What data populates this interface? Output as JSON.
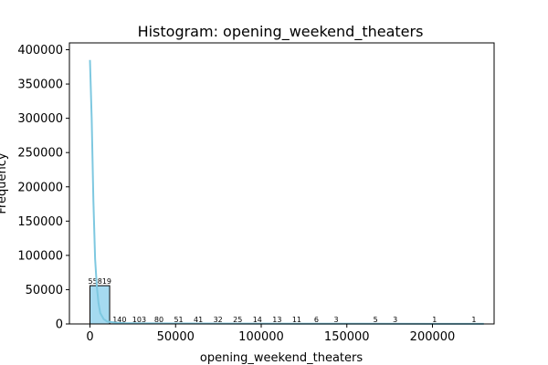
{
  "chart_data": {
    "type": "bar",
    "subtype": "histogram-with-kde",
    "title": "Histogram: opening_weekend_theaters",
    "xlabel": "opening_weekend_theaters",
    "ylabel": "Frequency",
    "xlim": [
      -12000,
      236000
    ],
    "ylim": [
      0,
      410000
    ],
    "xticks": [
      0,
      50000,
      100000,
      150000,
      200000
    ],
    "xtick_labels": [
      "0",
      "50000",
      "100000",
      "150000",
      "200000"
    ],
    "yticks": [
      0,
      50000,
      100000,
      150000,
      200000,
      250000,
      300000,
      350000,
      400000
    ],
    "ytick_labels": [
      "0",
      "50000",
      "100000",
      "150000",
      "200000",
      "250000",
      "300000",
      "350000",
      "400000"
    ],
    "grid": false,
    "bar_color": "#87ceeb",
    "bar_edge_color": "#000000",
    "kde_color": "#7ec8e0",
    "bins": [
      {
        "x0": 0,
        "x1": 11500,
        "count": 55819
      },
      {
        "x0": 11500,
        "x1": 23000,
        "count": 140
      },
      {
        "x0": 23000,
        "x1": 34500,
        "count": 103
      },
      {
        "x0": 34500,
        "x1": 46000,
        "count": 80
      },
      {
        "x0": 46000,
        "x1": 57500,
        "count": 51
      },
      {
        "x0": 57500,
        "x1": 69000,
        "count": 41
      },
      {
        "x0": 69000,
        "x1": 80500,
        "count": 32
      },
      {
        "x0": 80500,
        "x1": 92000,
        "count": 25
      },
      {
        "x0": 92000,
        "x1": 103500,
        "count": 14
      },
      {
        "x0": 103500,
        "x1": 115000,
        "count": 13
      },
      {
        "x0": 115000,
        "x1": 126500,
        "count": 11
      },
      {
        "x0": 126500,
        "x1": 138000,
        "count": 6
      },
      {
        "x0": 138000,
        "x1": 149500,
        "count": 3
      },
      {
        "x0": 149500,
        "x1": 161000,
        "count": 0,
        "label": ""
      },
      {
        "x0": 161000,
        "x1": 172500,
        "count": 5
      },
      {
        "x0": 172500,
        "x1": 184000,
        "count": 3
      },
      {
        "x0": 184000,
        "x1": 195500,
        "count": 0,
        "label": ""
      },
      {
        "x0": 195500,
        "x1": 207000,
        "count": 1
      },
      {
        "x0": 207000,
        "x1": 218500,
        "count": 0,
        "label": ""
      },
      {
        "x0": 218500,
        "x1": 230000,
        "count": 1
      }
    ],
    "kde_points": [
      [
        0,
        385000
      ],
      [
        1000,
        300000
      ],
      [
        2000,
        180000
      ],
      [
        3000,
        95000
      ],
      [
        4000,
        55000
      ],
      [
        5000,
        30000
      ],
      [
        6000,
        16000
      ],
      [
        8000,
        7000
      ],
      [
        10000,
        3500
      ],
      [
        15000,
        1800
      ],
      [
        20000,
        1200
      ],
      [
        30000,
        900
      ],
      [
        50000,
        700
      ],
      [
        80000,
        500
      ],
      [
        120000,
        350
      ],
      [
        160000,
        250
      ],
      [
        200000,
        150
      ],
      [
        230000,
        100
      ]
    ]
  }
}
